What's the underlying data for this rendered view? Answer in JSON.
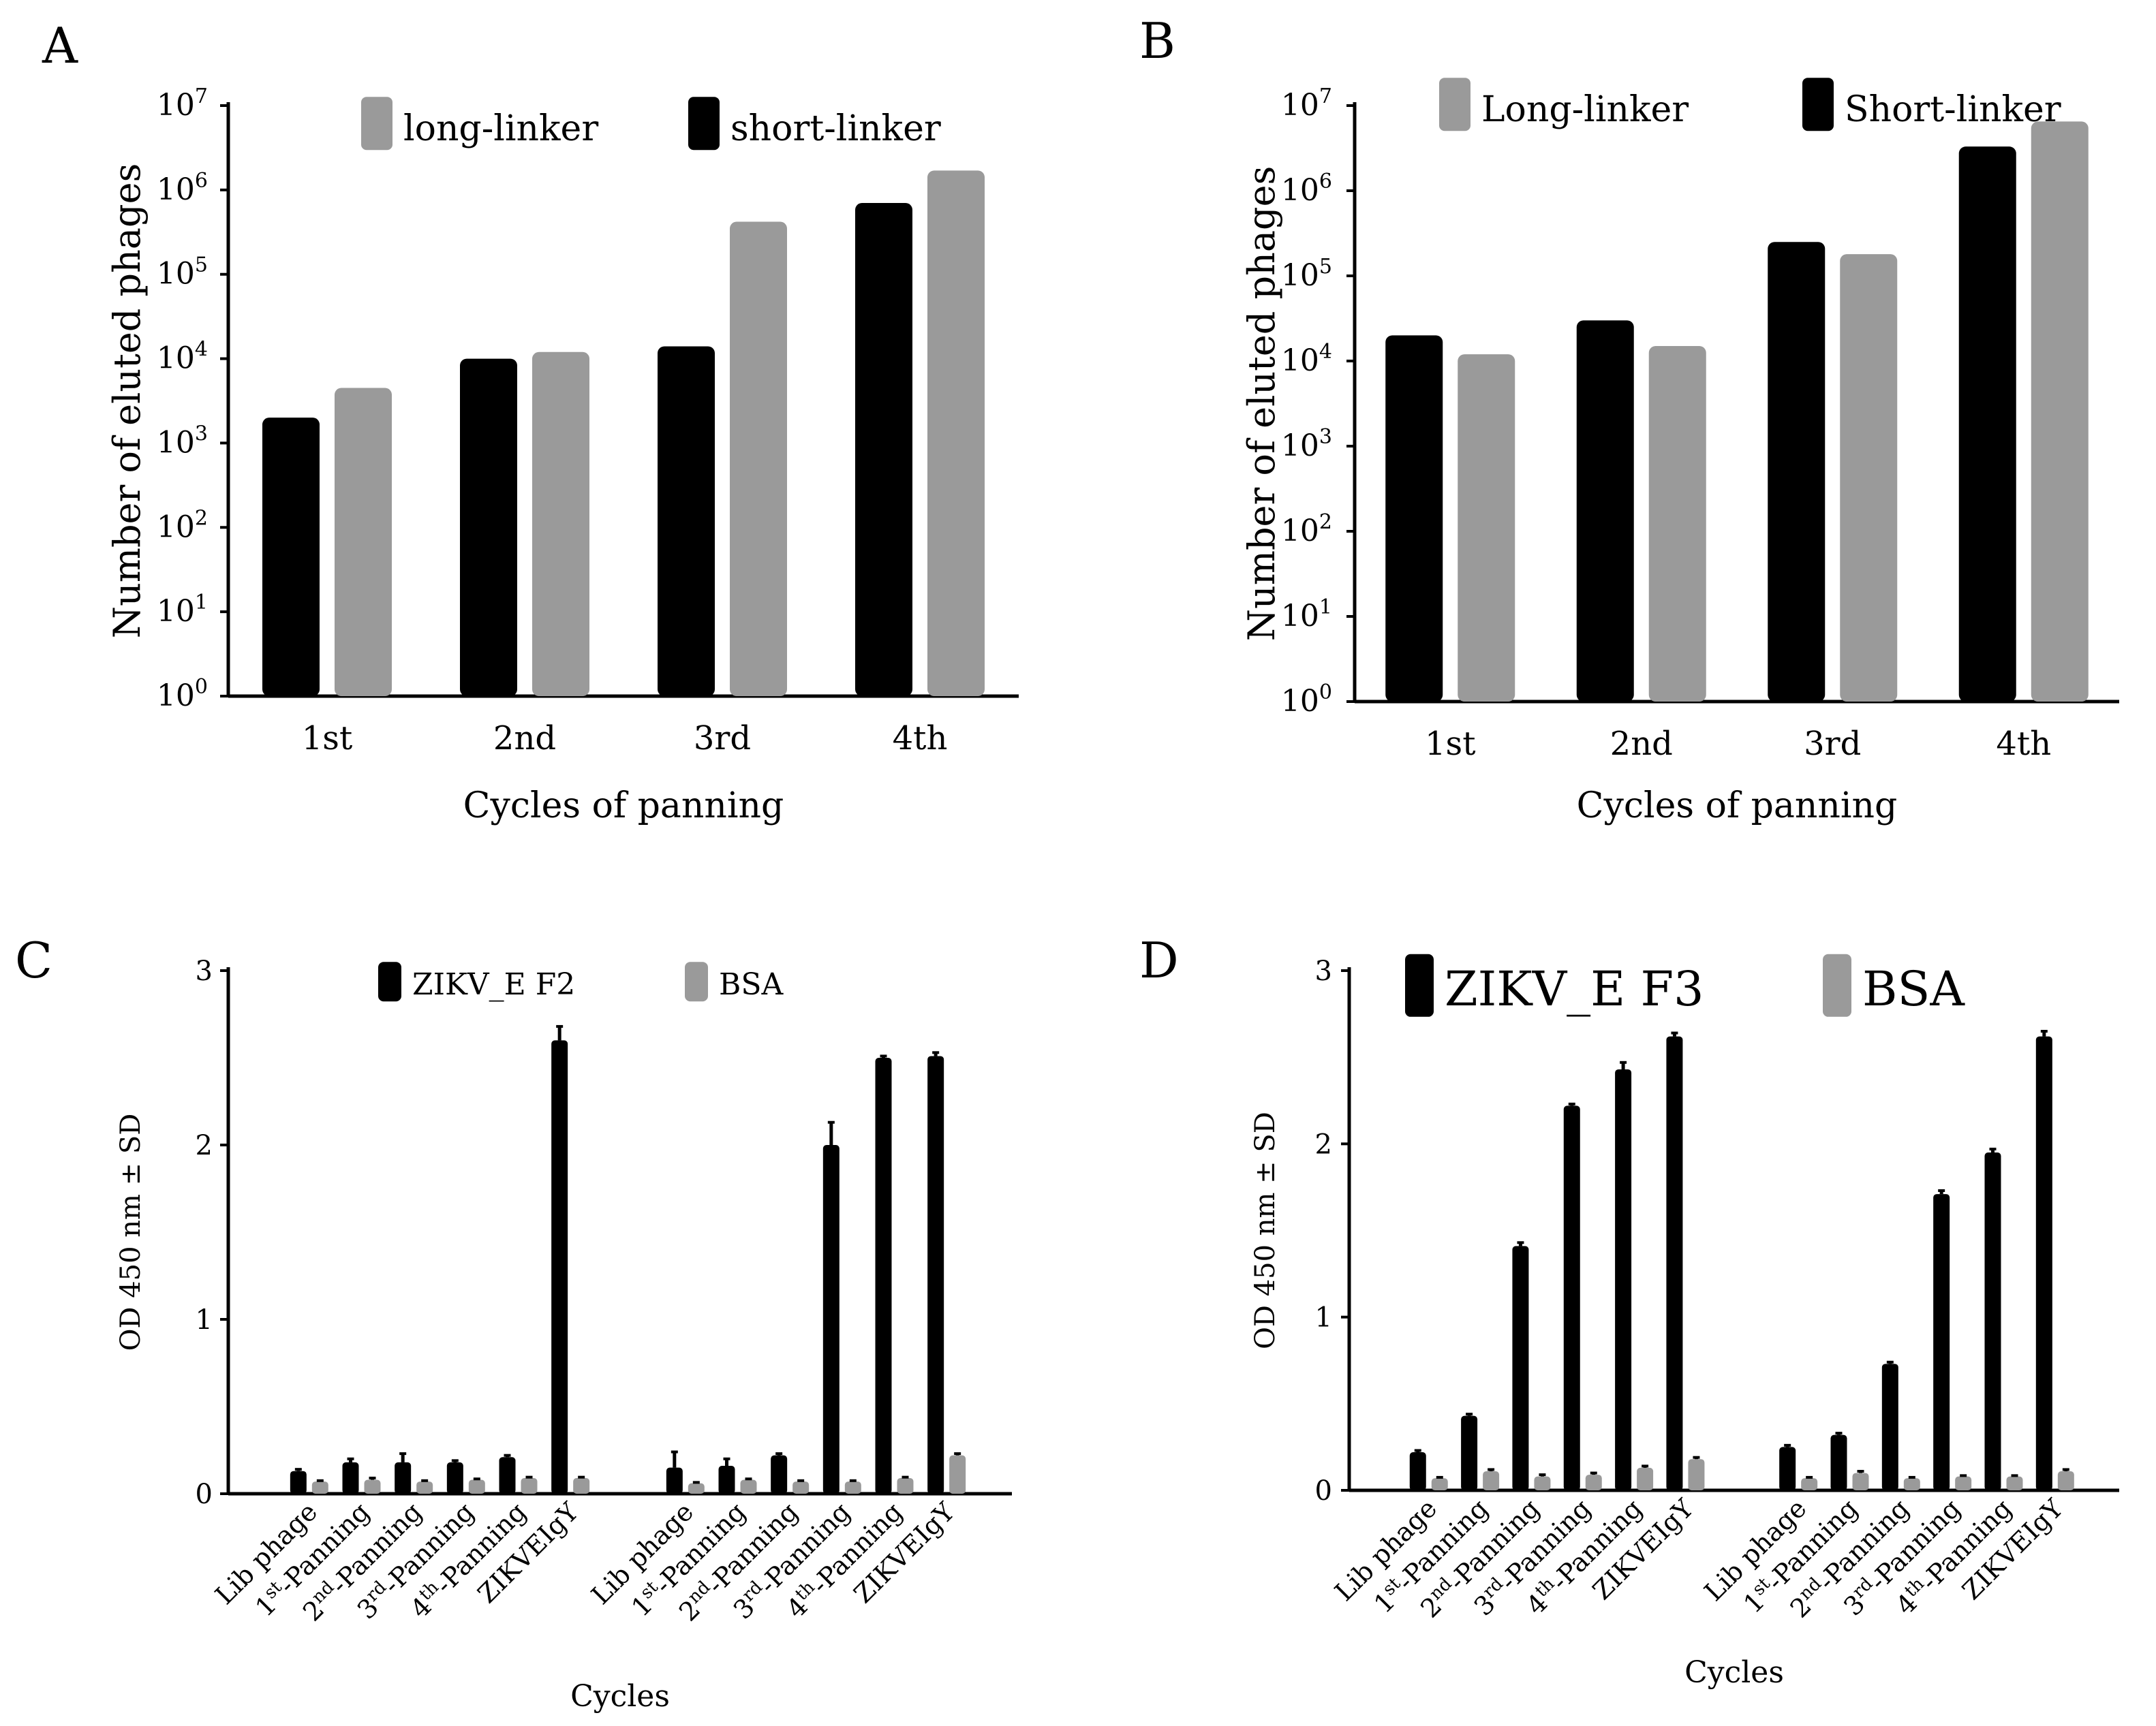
{
  "figure": {
    "colors": {
      "black_series": "#000000",
      "gray_series": "#9a9a9a",
      "error_bar": "#000000"
    },
    "panels": [
      "A",
      "B",
      "C",
      "D"
    ]
  },
  "chart_data": [
    {
      "panel": "A",
      "type": "bar",
      "yscale": "log",
      "title": "",
      "xlabel": "Cycles of panning",
      "ylabel": "Number of eluted phages",
      "ylim": [
        1,
        10000000
      ],
      "yticks": [
        {
          "base": "10",
          "exp": "0"
        },
        {
          "base": "10",
          "exp": "1"
        },
        {
          "base": "10",
          "exp": "2"
        },
        {
          "base": "10",
          "exp": "3"
        },
        {
          "base": "10",
          "exp": "4"
        },
        {
          "base": "10",
          "exp": "5"
        },
        {
          "base": "10",
          "exp": "6"
        },
        {
          "base": "10",
          "exp": "7"
        }
      ],
      "categories": [
        "1st",
        "2nd",
        "3rd",
        "4th"
      ],
      "legend": [
        {
          "label": "long-linker",
          "color": "#9a9a9a"
        },
        {
          "label": "short-linker",
          "color": "#000000"
        }
      ],
      "series": [
        {
          "name": "short-linker",
          "color": "#000000",
          "values": [
            2000,
            10000,
            14000,
            700000
          ]
        },
        {
          "name": "long-linker",
          "color": "#9a9a9a",
          "values": [
            4500,
            12000,
            420000,
            1700000
          ]
        }
      ]
    },
    {
      "panel": "B",
      "type": "bar",
      "yscale": "log",
      "title": "",
      "xlabel": "Cycles of panning",
      "ylabel": "Number of eluted phages",
      "ylim": [
        1,
        10000000
      ],
      "yticks": [
        {
          "base": "10",
          "exp": "0"
        },
        {
          "base": "10",
          "exp": "1"
        },
        {
          "base": "10",
          "exp": "2"
        },
        {
          "base": "10",
          "exp": "3"
        },
        {
          "base": "10",
          "exp": "4"
        },
        {
          "base": "10",
          "exp": "5"
        },
        {
          "base": "10",
          "exp": "6"
        },
        {
          "base": "10",
          "exp": "7"
        }
      ],
      "categories": [
        "1st",
        "2nd",
        "3rd",
        "4th"
      ],
      "legend": [
        {
          "label": "Long-linker",
          "color": "#9a9a9a"
        },
        {
          "label": "Short-linker",
          "color": "#000000"
        }
      ],
      "series": [
        {
          "name": "Short-linker",
          "color": "#000000",
          "values": [
            20000,
            30000,
            250000,
            3300000
          ]
        },
        {
          "name": "Long-linker",
          "color": "#9a9a9a",
          "values": [
            12000,
            15000,
            180000,
            6500000
          ]
        }
      ]
    },
    {
      "panel": "C",
      "type": "bar",
      "yscale": "linear",
      "title": "",
      "xlabel": "Cycles",
      "ylabel": "OD 450 nm ± SD",
      "ylim": [
        0,
        3
      ],
      "yticks": [
        "0",
        "1",
        "2",
        "3"
      ],
      "legend": [
        {
          "label": "ZIKV_E F2",
          "color": "#000000"
        },
        {
          "label": "BSA",
          "color": "#9a9a9a"
        }
      ],
      "groups": [
        {
          "categories": [
            {
              "pre": "Lib phage",
              "sup": "",
              "post": ""
            },
            {
              "pre": "1",
              "sup": "st",
              "post": "-Panning"
            },
            {
              "pre": "2",
              "sup": "nd",
              "post": "-Panning"
            },
            {
              "pre": "3",
              "sup": "rd",
              "post": "-Panning"
            },
            {
              "pre": "4",
              "sup": "th",
              "post": "-Panning"
            },
            {
              "pre": "ZIKVEIgY",
              "sup": "",
              "post": ""
            }
          ],
          "series": [
            {
              "name": "ZIKV_E F2",
              "values": [
                0.13,
                0.18,
                0.18,
                0.18,
                0.21,
                2.6
              ],
              "sd": [
                0.01,
                0.02,
                0.05,
                0.01,
                0.01,
                0.08
              ]
            },
            {
              "name": "BSA",
              "values": [
                0.07,
                0.08,
                0.07,
                0.08,
                0.09,
                0.09
              ],
              "sd": [
                0.005,
                0.01,
                0.005,
                0.005,
                0.005,
                0.005
              ]
            }
          ]
        },
        {
          "categories": [
            {
              "pre": "Lib phage",
              "sup": "",
              "post": ""
            },
            {
              "pre": "1",
              "sup": "st",
              "post": "-Panning"
            },
            {
              "pre": "2",
              "sup": "nd",
              "post": "-Panning"
            },
            {
              "pre": "3",
              "sup": "rd",
              "post": "-Panning"
            },
            {
              "pre": "4",
              "sup": "th",
              "post": "-Panning"
            },
            {
              "pre": "ZIKVEIgY",
              "sup": "",
              "post": ""
            }
          ],
          "series": [
            {
              "name": "ZIKV_E F2",
              "values": [
                0.15,
                0.16,
                0.22,
                2.0,
                2.5,
                2.51
              ],
              "sd": [
                0.09,
                0.04,
                0.01,
                0.13,
                0.01,
                0.02
              ]
            },
            {
              "name": "BSA",
              "values": [
                0.06,
                0.08,
                0.07,
                0.07,
                0.09,
                0.22
              ],
              "sd": [
                0.005,
                0.005,
                0.005,
                0.005,
                0.005,
                0.01
              ]
            }
          ]
        }
      ]
    },
    {
      "panel": "D",
      "type": "bar",
      "yscale": "linear",
      "title": "",
      "xlabel": "Cycles",
      "ylabel": "OD 450 nm ± SD",
      "ylim": [
        0,
        3
      ],
      "yticks": [
        "0",
        "1",
        "2",
        "3"
      ],
      "legend": [
        {
          "label": "ZIKV_E F3",
          "color": "#000000"
        },
        {
          "label": "BSA",
          "color": "#9a9a9a"
        }
      ],
      "groups": [
        {
          "categories": [
            {
              "pre": "Lib phage",
              "sup": "",
              "post": ""
            },
            {
              "pre": "1",
              "sup": "st",
              "post": "-Panning"
            },
            {
              "pre": "2",
              "sup": "nd",
              "post": "-Panning"
            },
            {
              "pre": "3",
              "sup": "rd",
              "post": "-Panning"
            },
            {
              "pre": "4",
              "sup": "th",
              "post": "-Panning"
            },
            {
              "pre": "ZIKVEIgY",
              "sup": "",
              "post": ""
            }
          ],
          "series": [
            {
              "name": "ZIKV_E F3",
              "values": [
                0.22,
                0.43,
                1.41,
                2.22,
                2.43,
                2.62
              ],
              "sd": [
                0.01,
                0.01,
                0.02,
                0.01,
                0.04,
                0.02
              ]
            },
            {
              "name": "BSA",
              "values": [
                0.07,
                0.11,
                0.08,
                0.09,
                0.13,
                0.18
              ],
              "sd": [
                0.005,
                0.01,
                0.01,
                0.01,
                0.01,
                0.01
              ]
            }
          ]
        },
        {
          "categories": [
            {
              "pre": "Lib phage",
              "sup": "",
              "post": ""
            },
            {
              "pre": "1",
              "sup": "st",
              "post": "-Panning"
            },
            {
              "pre": "2",
              "sup": "nd",
              "post": "-Panning"
            },
            {
              "pre": "3",
              "sup": "rd",
              "post": "-Panning"
            },
            {
              "pre": "4",
              "sup": "th",
              "post": "-Panning"
            },
            {
              "pre": "ZIKVEIgY",
              "sup": "",
              "post": ""
            }
          ],
          "series": [
            {
              "name": "ZIKV_E F3",
              "values": [
                0.25,
                0.32,
                0.73,
                1.71,
                1.95,
                2.62
              ],
              "sd": [
                0.01,
                0.01,
                0.01,
                0.02,
                0.02,
                0.03
              ]
            },
            {
              "name": "BSA",
              "values": [
                0.07,
                0.1,
                0.07,
                0.08,
                0.08,
                0.11
              ],
              "sd": [
                0.005,
                0.01,
                0.005,
                0.005,
                0.005,
                0.01
              ]
            }
          ]
        }
      ]
    }
  ]
}
